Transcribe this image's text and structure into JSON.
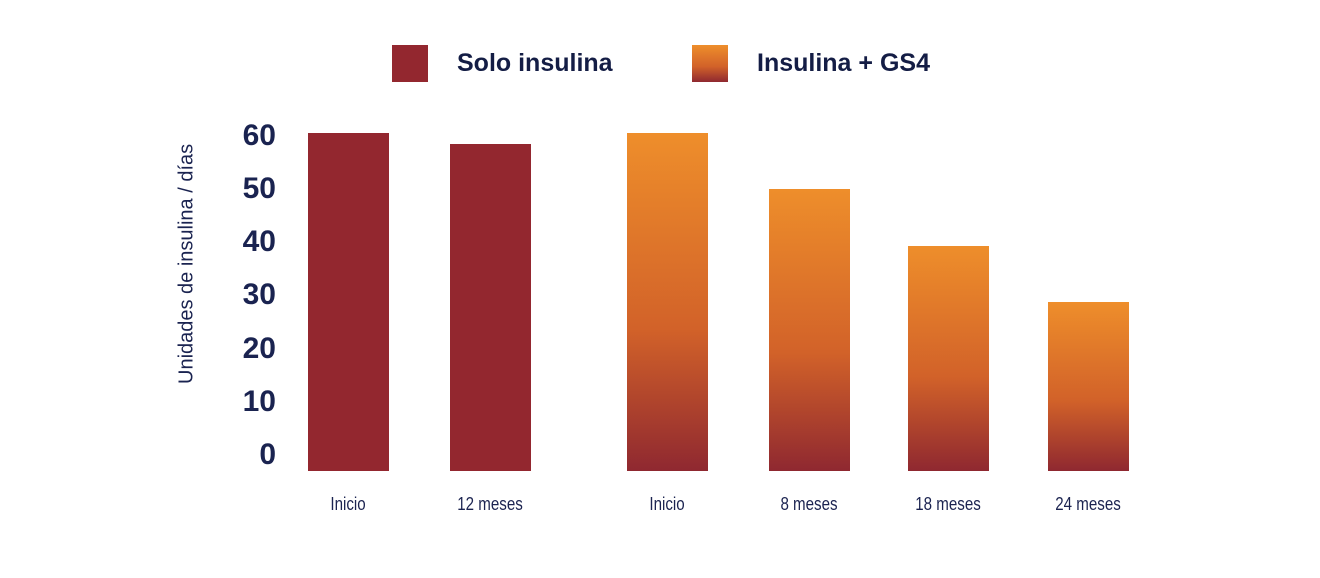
{
  "legend": {
    "items": [
      {
        "label": "Solo insulina",
        "style": "solid",
        "color": "#93272F"
      },
      {
        "label": "Insulina + GS4",
        "style": "gradient",
        "color_top": "#EE8E2B",
        "color_mid": "#D26229",
        "color_bottom": "#8F2830"
      }
    ]
  },
  "chart_data": {
    "type": "bar",
    "title": "",
    "xlabel": "",
    "ylabel": "Unidades de insulina / días",
    "ylim": [
      0,
      60
    ],
    "y_ticks": [
      60,
      50,
      40,
      30,
      20,
      10,
      0
    ],
    "grid": false,
    "legend_position": "top",
    "categories": [
      "Inicio",
      "12 meses",
      "Inicio",
      "8 meses",
      "18 meses",
      "24 meses"
    ],
    "series": [
      {
        "name": "Solo insulina",
        "color": "#93272F",
        "points": [
          {
            "label": "Inicio",
            "value": 60
          },
          {
            "label": "12 meses",
            "value": 58
          }
        ]
      },
      {
        "name": "Insulina + GS4",
        "color_top": "#EE8E2B",
        "color_mid": "#D26229",
        "color_bottom": "#8F2830",
        "points": [
          {
            "label": "Inicio",
            "value": 60
          },
          {
            "label": "8 meses",
            "value": 50
          },
          {
            "label": "18 meses",
            "value": 40
          },
          {
            "label": "24 meses",
            "value": 30
          }
        ]
      }
    ]
  }
}
